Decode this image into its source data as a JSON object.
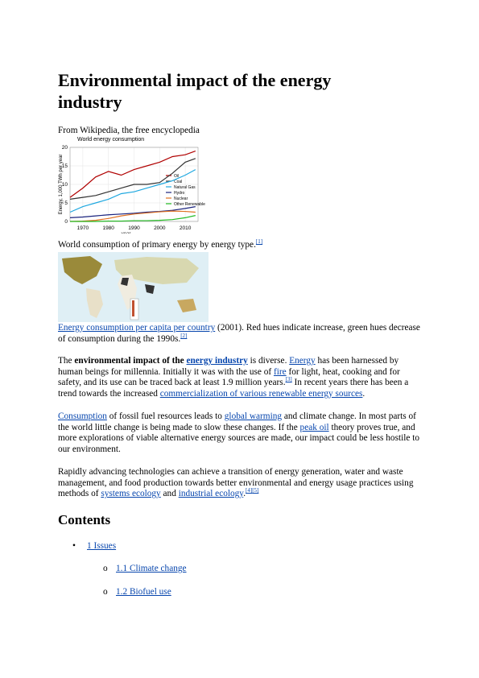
{
  "title": "Environmental impact of the energy industry",
  "tagline": "From Wikipedia, the free encyclopedia",
  "chart_data": {
    "type": "line",
    "title": "World energy consumption",
    "x_label": "year",
    "y_label": "Energy, 1,000 TWh per year",
    "x": [
      1965,
      1970,
      1975,
      1980,
      1985,
      1990,
      1995,
      2000,
      2005,
      2010,
      2014
    ],
    "xlim": [
      1965,
      2015
    ],
    "xticks": [
      1970,
      1980,
      1990,
      2000,
      2010
    ],
    "ylim": [
      0,
      20
    ],
    "yticks": [
      0,
      5,
      10,
      15,
      20
    ],
    "grid": true,
    "series": [
      {
        "name": "Oil",
        "color": "#b00000",
        "values": [
          6.5,
          9,
          12,
          13.5,
          12.5,
          14,
          15,
          16,
          17.5,
          18,
          19
        ]
      },
      {
        "name": "Coal",
        "color": "#333333",
        "values": [
          6,
          6.5,
          7,
          8,
          9,
          10,
          10,
          10.5,
          13,
          16,
          17
        ]
      },
      {
        "name": "Natural Gas",
        "color": "#1fa8e0",
        "values": [
          2.5,
          4,
          5,
          6,
          7.5,
          8,
          9,
          10,
          11,
          12.5,
          14
        ]
      },
      {
        "name": "Hydro",
        "color": "#1a237e",
        "values": [
          1,
          1.2,
          1.5,
          1.8,
          2,
          2.2,
          2.5,
          2.7,
          3,
          3.5,
          4
        ]
      },
      {
        "name": "Nuclear",
        "color": "#e07020",
        "values": [
          0,
          0.1,
          0.3,
          0.8,
          1.5,
          2,
          2.3,
          2.6,
          2.8,
          2.7,
          2.5
        ]
      },
      {
        "name": "Other Renewable",
        "color": "#22bb22",
        "values": [
          0,
          0,
          0,
          0.1,
          0.1,
          0.2,
          0.2,
          0.3,
          0.5,
          1,
          1.6
        ]
      }
    ]
  },
  "captions": [
    {
      "segments": [
        {
          "text": "World consumption of primary energy by energy type."
        },
        {
          "text": "[1]",
          "style": "sup"
        }
      ]
    },
    {
      "segments": [
        {
          "text": "Energy consumption per capita per country",
          "style": "link"
        },
        {
          "text": " (2001). Red hues indicate increase, green hues decrease of consumption during the 1990s."
        },
        {
          "text": "[2]",
          "style": "sup"
        }
      ]
    }
  ],
  "paragraphs": [
    {
      "segments": [
        {
          "text": "The "
        },
        {
          "text": "environmental impact of the ",
          "style": "bold"
        },
        {
          "text": "energy industry",
          "style": "bold-link"
        },
        {
          "text": " is diverse. "
        },
        {
          "text": "Energy",
          "style": "link"
        },
        {
          "text": " has been harnessed by human beings for millennia. Initially it was with the use of "
        },
        {
          "text": "fire",
          "style": "link"
        },
        {
          "text": " for light, heat, cooking and for safety, and its use can be traced back at least 1.9 million years."
        },
        {
          "text": "[3]",
          "style": "sup"
        },
        {
          "text": " In recent years there has been a trend towards the increased "
        },
        {
          "text": "commercialization of various renewable energy sources",
          "style": "link"
        },
        {
          "text": "."
        }
      ]
    },
    {
      "segments": [
        {
          "text": "Consumption",
          "style": "link"
        },
        {
          "text": " of fossil fuel resources leads to "
        },
        {
          "text": "global warming",
          "style": "link"
        },
        {
          "text": " and climate change. In most parts of the world little change is being made to slow these changes. If the "
        },
        {
          "text": "peak oil",
          "style": "link"
        },
        {
          "text": " theory proves true, and more explorations of viable alternative energy sources are made, our impact could be less hostile to our environment."
        }
      ]
    },
    {
      "segments": [
        {
          "text": "Rapidly advancing technologies can achieve a transition of energy generation, water and waste management, and food production towards better environmental and energy usage practices using methods of "
        },
        {
          "text": "systems ecology",
          "style": "link"
        },
        {
          "text": " and "
        },
        {
          "text": "industrial ecology",
          "style": "link"
        },
        {
          "text": "."
        },
        {
          "text": "[4]",
          "style": "sup"
        },
        {
          "text": "[5]",
          "style": "sup"
        }
      ]
    }
  ],
  "contents": {
    "heading": "Contents",
    "items": [
      {
        "label": "1 Issues",
        "level": 1
      },
      {
        "label": "1.1 Climate change",
        "level": 2
      },
      {
        "label": "1.2 Biofuel use",
        "level": 2
      }
    ]
  }
}
